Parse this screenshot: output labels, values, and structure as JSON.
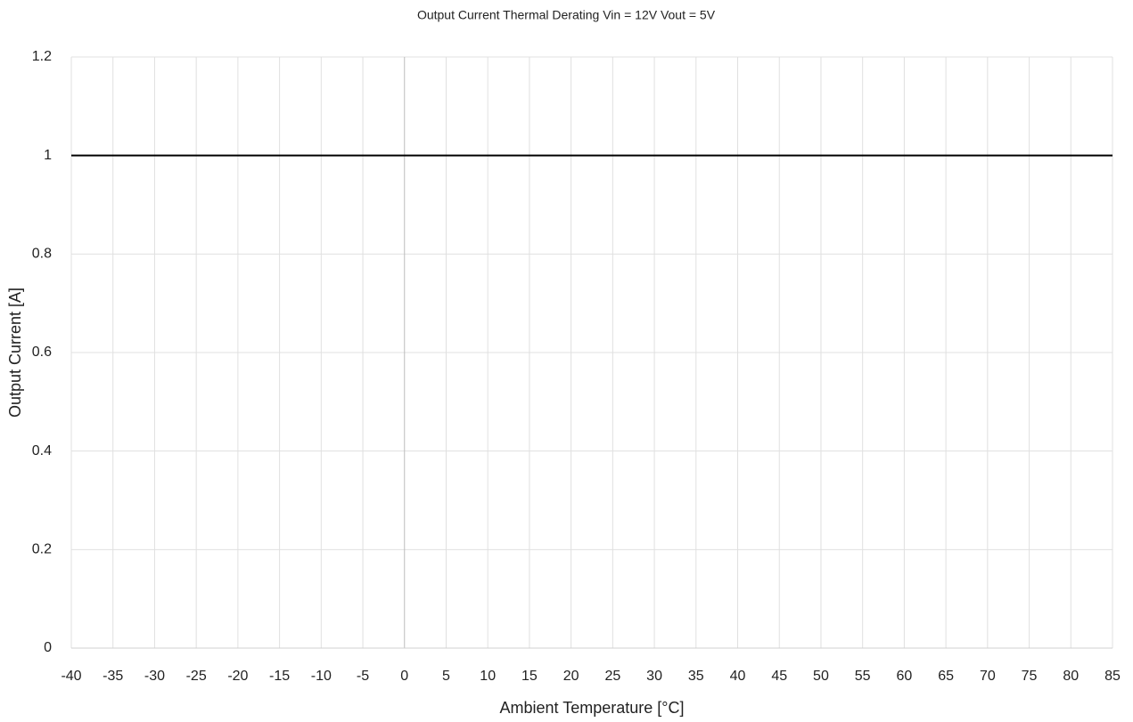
{
  "chart_data": {
    "type": "line",
    "title": "Output Current Thermal Derating Vin = 12V Vout = 5V",
    "x_label": "Ambient Temperature [°C]",
    "y_label": "Output Current [A]",
    "x": [
      -40,
      85
    ],
    "values": [
      1,
      1
    ],
    "color": "#000000",
    "xlim": [
      -40,
      85
    ],
    "xticks": [
      -40,
      -35,
      -30,
      -25,
      -20,
      -15,
      -10,
      -5,
      0,
      5,
      10,
      15,
      20,
      25,
      30,
      35,
      40,
      45,
      50,
      55,
      60,
      65,
      70,
      75,
      80,
      85
    ],
    "ylim": [
      0,
      1.2
    ],
    "yticks": [
      0,
      0.2,
      0.4,
      0.6,
      0.8,
      1,
      1.2
    ],
    "grid": true
  }
}
